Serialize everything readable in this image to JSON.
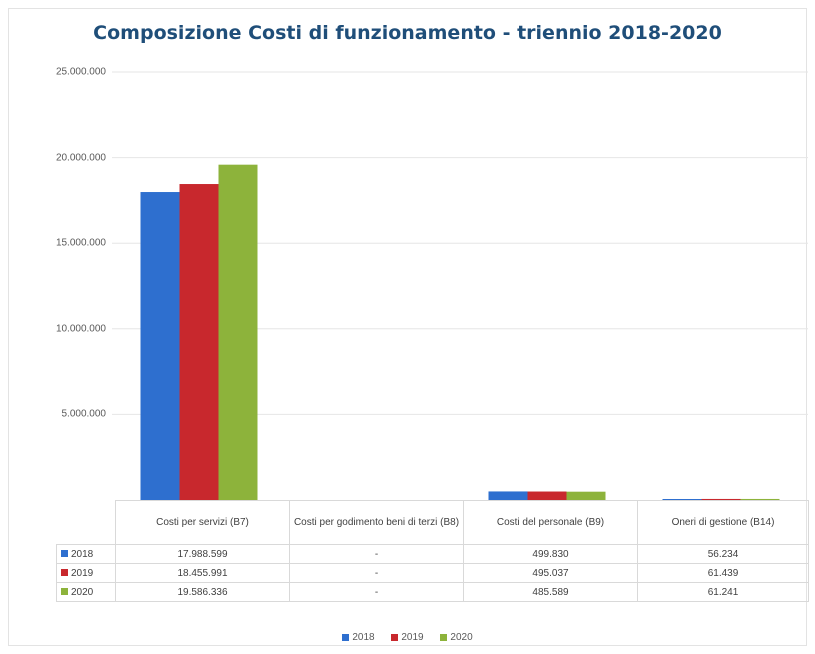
{
  "chart_data": {
    "type": "bar",
    "title": "Composizione Costi di funzionamento - triennio 2018-2020",
    "categories": [
      "Costi per servizi (B7)",
      "Costi per godimento beni di terzi (B8)",
      "Costi del personale (B9)",
      "Oneri di gestione (B14)"
    ],
    "series": [
      {
        "name": "2018",
        "color": "#2e6fcf",
        "values": [
          17988599,
          0,
          499830,
          56234
        ],
        "labels": [
          "17.988.599",
          "-",
          "499.830",
          "56.234"
        ]
      },
      {
        "name": "2019",
        "color": "#c8282d",
        "values": [
          18455991,
          0,
          495037,
          61439
        ],
        "labels": [
          "18.455.991",
          "-",
          "495.037",
          "61.439"
        ]
      },
      {
        "name": "2020",
        "color": "#8db33b",
        "values": [
          19586336,
          0,
          485589,
          61241
        ],
        "labels": [
          "19.586.336",
          "-",
          "485.589",
          "61.241"
        ]
      }
    ],
    "ylim": [
      0,
      25000000
    ],
    "yticks": [
      {
        "value": 25000000,
        "label": "25.000.000"
      },
      {
        "value": 20000000,
        "label": "20.000.000"
      },
      {
        "value": 15000000,
        "label": "15.000.000"
      },
      {
        "value": 10000000,
        "label": "10.000.000"
      },
      {
        "value": 5000000,
        "label": "5.000.000"
      }
    ],
    "grid": true,
    "legend_position": "bottom",
    "data_table": true
  }
}
